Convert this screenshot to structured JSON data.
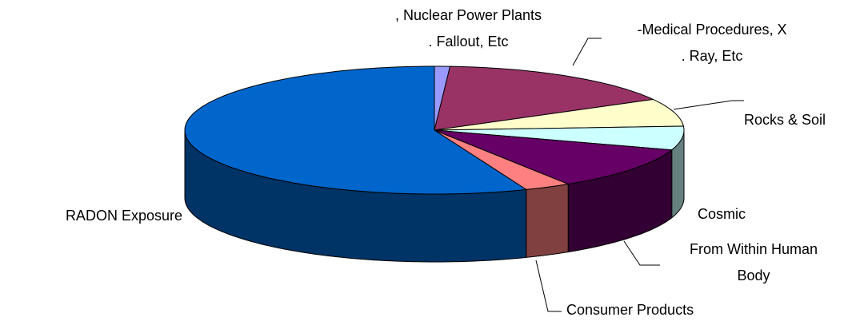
{
  "chart_data": {
    "type": "pie3d",
    "categories": [
      ", Nuclear Power Plants\n. Fallout, Etc",
      "-Medical Procedures, X\n. Ray, Etc",
      "Rocks & Soil",
      "Cosmic",
      "From Within Human\nBody",
      "Consumer Products",
      "RADON Exposure"
    ],
    "values": [
      1,
      16,
      7,
      6,
      11,
      3,
      56
    ],
    "colors": [
      "#9999ff",
      "#993366",
      "#ffffcc",
      "#ccffff",
      "#660066",
      "#ff8080",
      "#0066cc"
    ]
  }
}
